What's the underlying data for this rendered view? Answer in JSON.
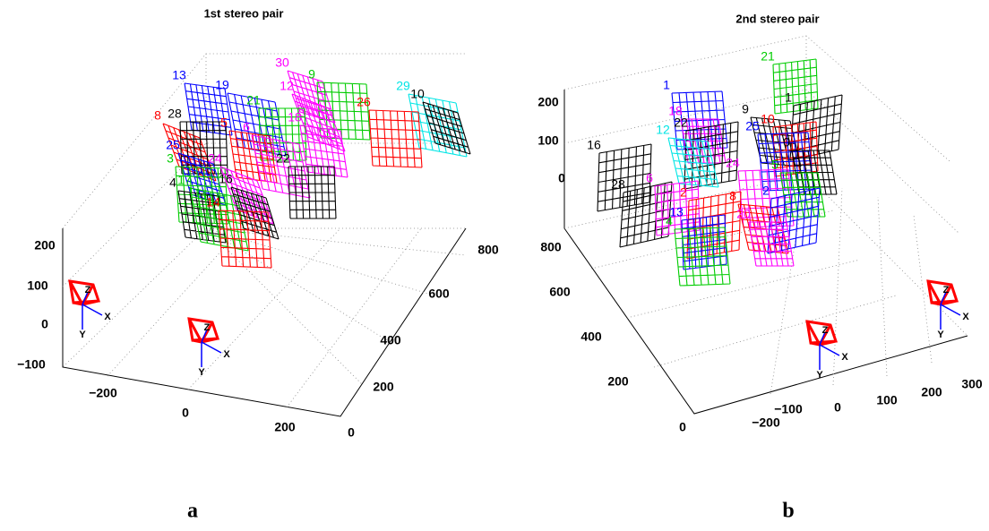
{
  "panels": [
    {
      "title": "1st stereo pair",
      "caption": "a",
      "z_ticks": [
        "200",
        "100",
        "0",
        "−100"
      ],
      "x_ticks": [
        "−200",
        "0",
        "200"
      ],
      "y_ticks": [
        "0",
        "200",
        "400",
        "600",
        "800"
      ],
      "cameras": [
        {
          "labels": [
            "Z",
            "X",
            "Y"
          ]
        },
        {
          "labels": [
            "Z",
            "X",
            "Y"
          ]
        }
      ],
      "boards": [
        {
          "label": "13",
          "color": "#0000ff"
        },
        {
          "label": "19",
          "color": "#0000ff"
        },
        {
          "label": "30",
          "color": "#ff00ff"
        },
        {
          "label": "9",
          "color": "#00cc00"
        },
        {
          "label": "12",
          "color": "#ff00ff"
        },
        {
          "label": "21",
          "color": "#00cc00"
        },
        {
          "label": "18",
          "color": "#ff00ff"
        },
        {
          "label": "29",
          "color": "#00e5e5"
        },
        {
          "label": "10",
          "color": "#000000"
        },
        {
          "label": "26",
          "color": "#ff0000"
        },
        {
          "label": "8",
          "color": "#ff0000"
        },
        {
          "label": "28",
          "color": "#000000"
        },
        {
          "label": "5",
          "color": "#ff0000"
        },
        {
          "label": "6",
          "color": "#ff00ff"
        },
        {
          "label": "25",
          "color": "#0000ff"
        },
        {
          "label": "3",
          "color": "#00cc00"
        },
        {
          "label": "24",
          "color": "#ff00ff"
        },
        {
          "label": "22",
          "color": "#000000"
        },
        {
          "label": "4",
          "color": "#000000"
        },
        {
          "label": "17",
          "color": "#00cc00"
        },
        {
          "label": "16",
          "color": "#000000"
        },
        {
          "label": "14",
          "color": "#ff0000"
        }
      ]
    },
    {
      "title": "2nd stereo pair",
      "caption": "b",
      "z_ticks": [
        "200",
        "100",
        "0"
      ],
      "x_ticks": [
        "−200",
        "−100",
        "0",
        "100",
        "200",
        "300"
      ],
      "y_ticks": [
        "800",
        "600",
        "400",
        "200",
        "0"
      ],
      "cameras": [
        {
          "labels": [
            "Z",
            "X",
            "Y"
          ]
        },
        {
          "labels": [
            "Z",
            "X",
            "Y"
          ]
        }
      ],
      "boards": [
        {
          "label": "21",
          "color": "#00cc00"
        },
        {
          "label": "1",
          "color": "#0000ff"
        },
        {
          "label": "18",
          "color": "#ff00ff"
        },
        {
          "label": "22",
          "color": "#000000"
        },
        {
          "label": "9",
          "color": "#000000"
        },
        {
          "label": "1",
          "color": "#000000"
        },
        {
          "label": "10",
          "color": "#ff0000"
        },
        {
          "label": "25",
          "color": "#0000ff"
        },
        {
          "label": "0",
          "color": "#000000"
        },
        {
          "label": "16",
          "color": "#000000"
        },
        {
          "label": "12",
          "color": "#00e5e5"
        },
        {
          "label": "28",
          "color": "#000000"
        },
        {
          "label": "6",
          "color": "#ff00ff"
        },
        {
          "label": "24",
          "color": "#ff00ff"
        },
        {
          "label": "5",
          "color": "#00cc00"
        },
        {
          "label": "2",
          "color": "#ff0000"
        },
        {
          "label": "8",
          "color": "#ff0000"
        },
        {
          "label": "2",
          "color": "#0000ff"
        },
        {
          "label": "13",
          "color": "#0000ff"
        },
        {
          "label": "4",
          "color": "#00cc00"
        },
        {
          "label": "20",
          "color": "#ff00ff"
        }
      ]
    }
  ]
}
